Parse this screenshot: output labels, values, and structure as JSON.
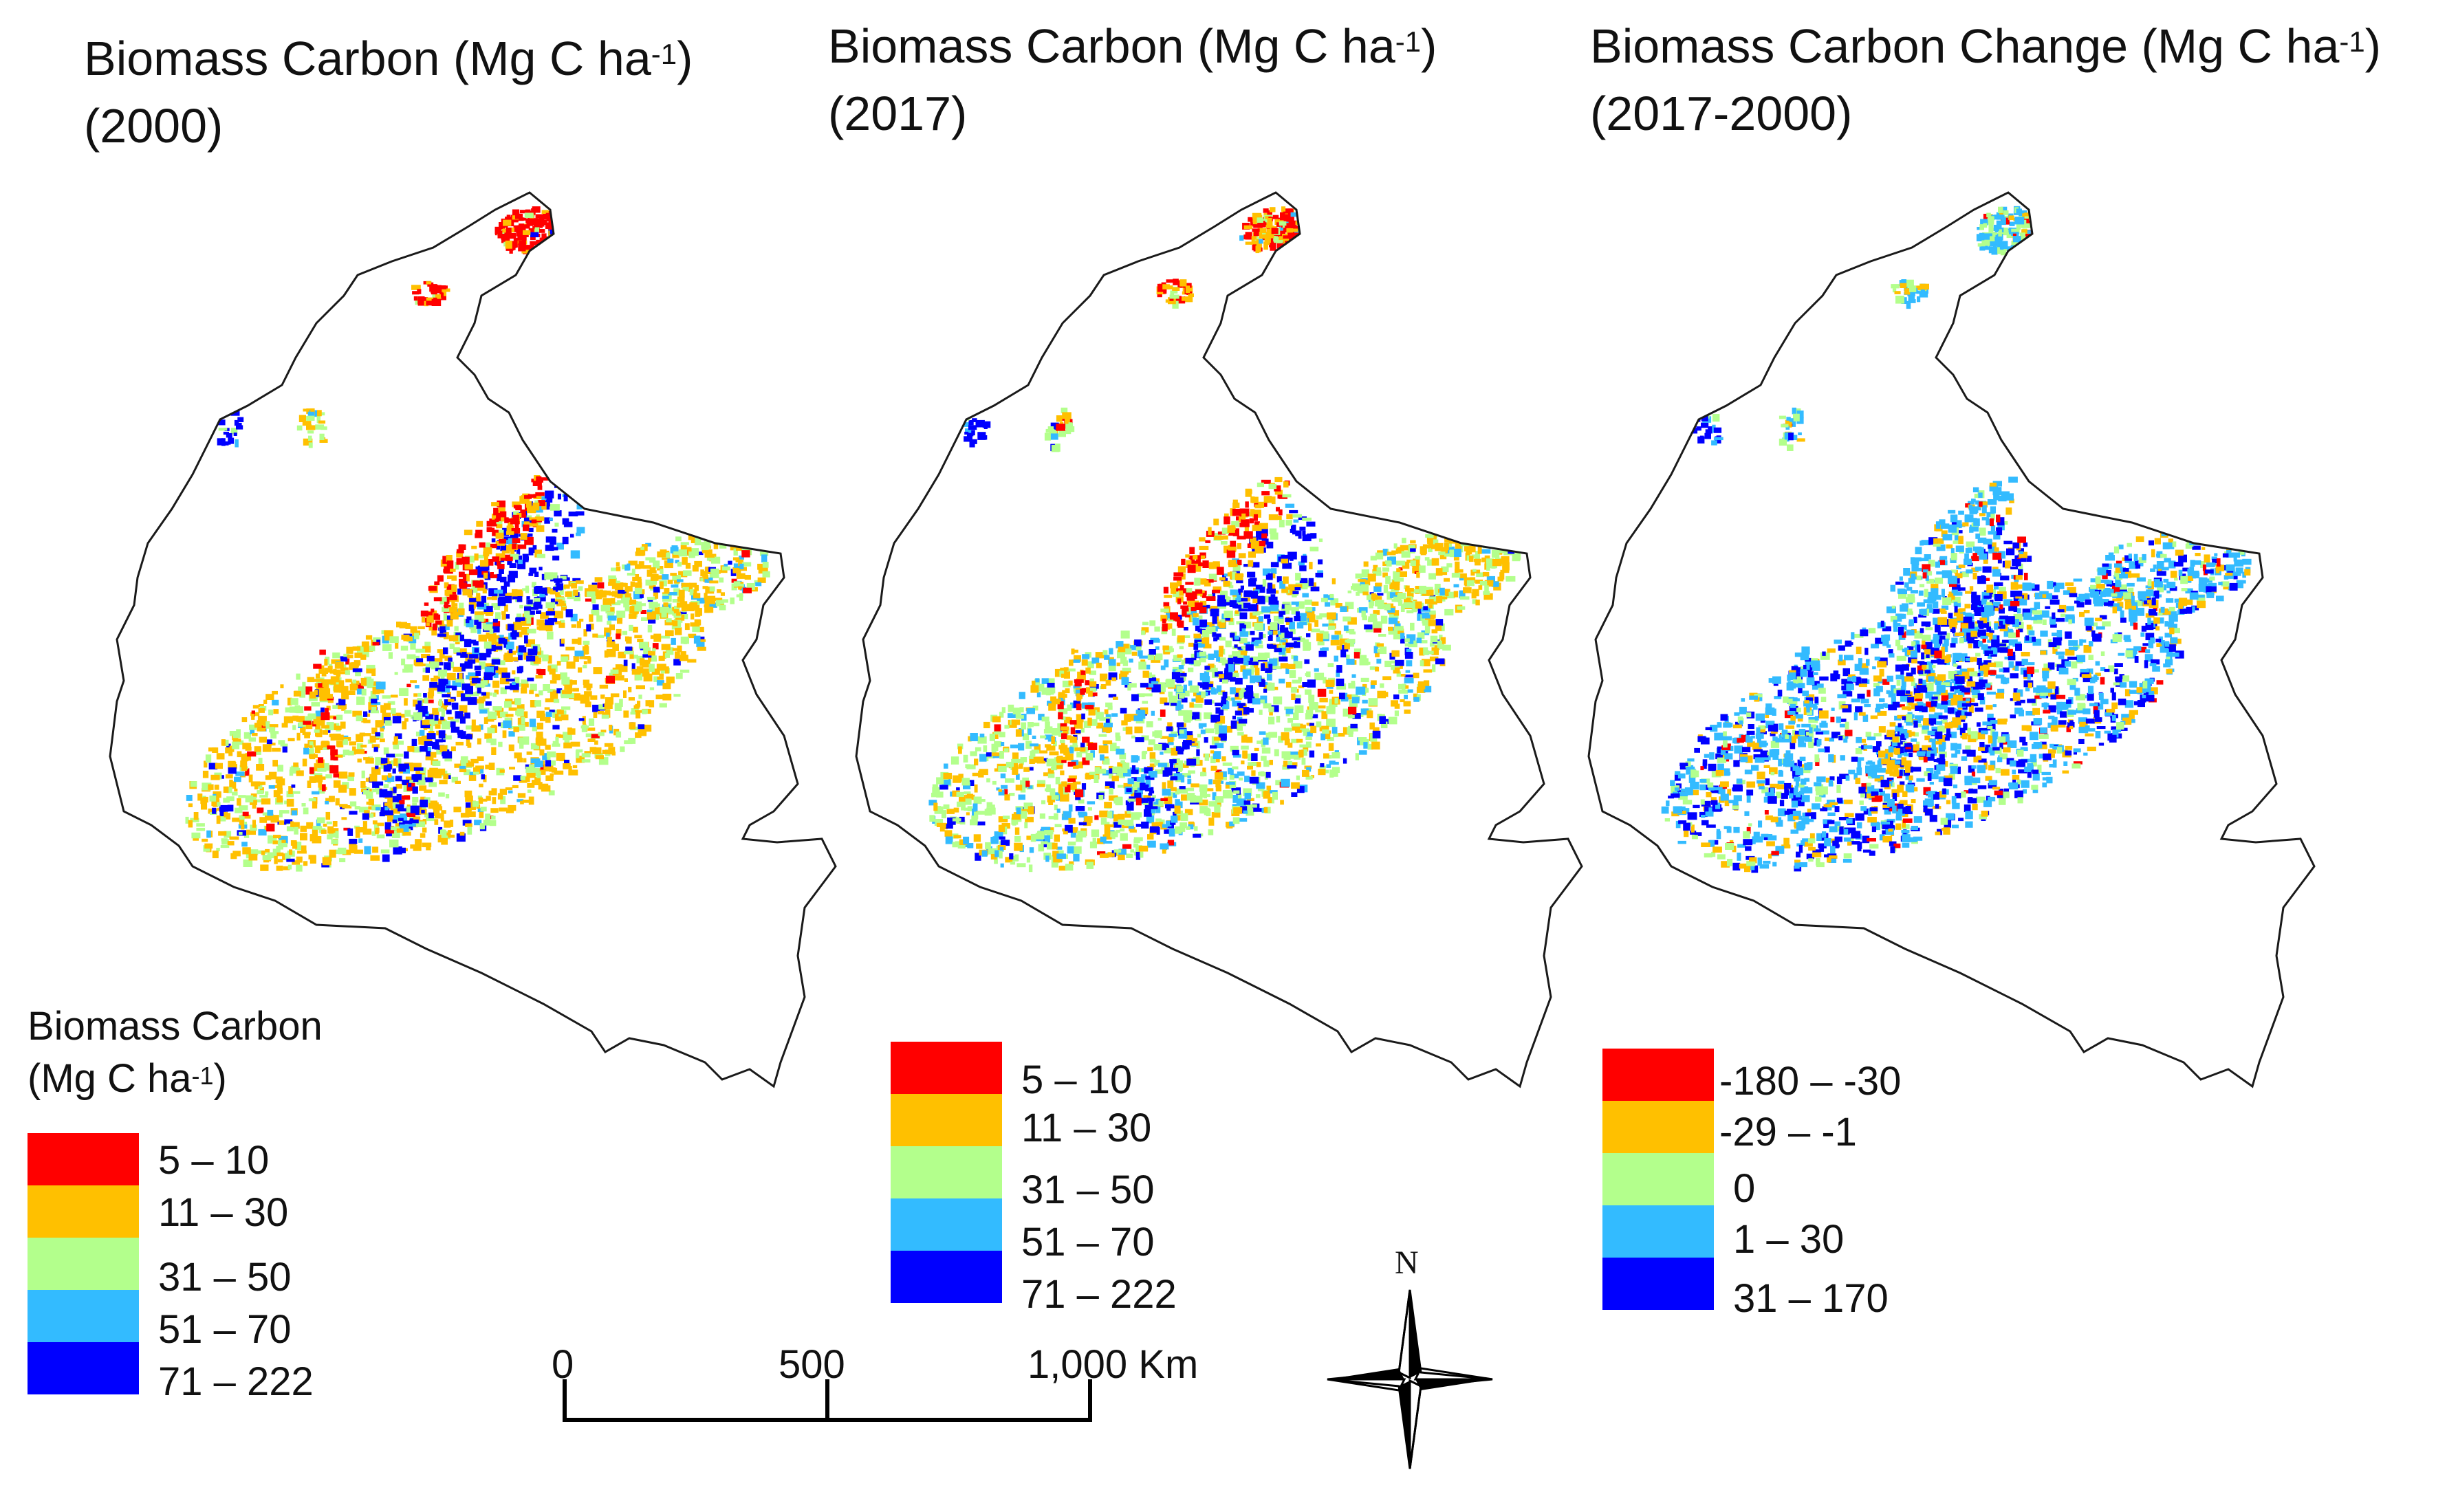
{
  "panels": [
    {
      "title_line1_pre": "Biomass Carbon (Mg C ha",
      "title_sup": "-1",
      "title_line1_post": ")",
      "title_line2": "(2000)"
    },
    {
      "title_line1_pre": "Biomass Carbon (Mg C ha",
      "title_sup": "-1",
      "title_line1_post": ")",
      "title_line2": "(2017)"
    },
    {
      "title_line1_pre": "Biomass Carbon Change (Mg C ha",
      "title_sup": "-1",
      "title_line1_post": ")",
      "title_line2": "(2017-2000)"
    }
  ],
  "legends": [
    {
      "title_line1": "Biomass Carbon",
      "title_line2_pre": "(Mg C ha",
      "title_sup": "-1",
      "title_line2_post": ")",
      "classes": [
        {
          "label": "5 – 10",
          "color": "#ff0000"
        },
        {
          "label": "11 – 30",
          "color": "#ffc000"
        },
        {
          "label": "31 – 50",
          "color": "#b3ff8c"
        },
        {
          "label": "51 – 70",
          "color": "#33bbff"
        },
        {
          "label": "71 – 222",
          "color": "#0000ff"
        }
      ]
    },
    {
      "classes": [
        {
          "label": "5 – 10",
          "color": "#ff0000"
        },
        {
          "label": "11 – 30",
          "color": "#ffc000"
        },
        {
          "label": "31 – 50",
          "color": "#b3ff8c"
        },
        {
          "label": "51 – 70",
          "color": "#33bbff"
        },
        {
          "label": "71 – 222",
          "color": "#0000ff"
        }
      ]
    },
    {
      "classes": [
        {
          "label": "-180 – -30",
          "color": "#ff0000"
        },
        {
          "label": "-29 – -1",
          "color": "#ffc000"
        },
        {
          "label": "0",
          "color": "#b3ff8c"
        },
        {
          "label": "1 – 30",
          "color": "#33bbff"
        },
        {
          "label": "31 – 170",
          "color": "#0000ff"
        }
      ]
    }
  ],
  "scale_bar": {
    "labels": [
      "0",
      "500",
      "1,000 Km"
    ]
  },
  "north_arrow": {
    "label": "N"
  }
}
